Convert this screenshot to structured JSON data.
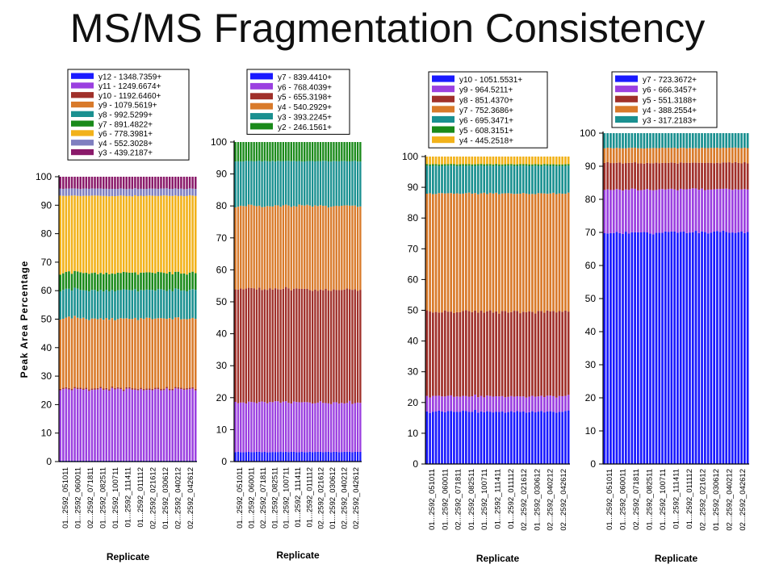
{
  "title": "MS/MS Fragmentation Consistency",
  "chart_data": [
    {
      "type": "bar",
      "stacked": true,
      "ylabel": "Peak Area Percentage",
      "xlabel": "Replicate",
      "ylim": [
        0,
        100
      ],
      "yticks": [
        0,
        10,
        20,
        30,
        40,
        50,
        60,
        70,
        80,
        90,
        100
      ],
      "legend": "top",
      "bar_count": 48,
      "category_labels": [
        "01...2592_051011",
        "01...2592_060011",
        "02...2592_071811",
        "01...2592_082511",
        "01...2592_100711",
        "01...2592_111411",
        "01...2592_011112",
        "02...2592_021612",
        "01...2592_030612",
        "02...2592_040212",
        "02...2592_042612"
      ],
      "series": [
        {
          "name": "y12 - 1348.7359+",
          "color": "#1a1aff",
          "value": 0.3
        },
        {
          "name": "y11 - 1249.6674+",
          "color": "#9b40e0",
          "value": 25
        },
        {
          "name": "y10 - 1192.6460+",
          "color": "#a0302a",
          "value": 0.5
        },
        {
          "name": "y9 - 1079.5619+",
          "color": "#d97a2a",
          "value": 24.5
        },
        {
          "name": "y8 - 992.5299+",
          "color": "#1a9090",
          "value": 10
        },
        {
          "name": "y7 - 891.4822+",
          "color": "#1a8a1a",
          "value": 6
        },
        {
          "name": "y6 - 778.3981+",
          "color": "#f2b21a",
          "value": 27
        },
        {
          "name": "y4 - 552.3028+",
          "color": "#7f7fc0",
          "value": 2.5
        },
        {
          "name": "y3 - 439.2187+",
          "color": "#8a1a6a",
          "value": 4.2
        }
      ]
    },
    {
      "type": "bar",
      "stacked": true,
      "ylabel": "",
      "xlabel": "Replicate",
      "ylim": [
        0,
        100
      ],
      "yticks": [
        0,
        10,
        20,
        30,
        40,
        50,
        60,
        70,
        80,
        90,
        100
      ],
      "legend": "top",
      "bar_count": 48,
      "category_labels": [
        "01...2592_051011",
        "01...2592_060011",
        "02...2592_071811",
        "01...2592_082511",
        "01...2592_100711",
        "01...2592_111411",
        "01...2592_011112",
        "02...2592_021612",
        "01...2592_030612",
        "02...2592_040212",
        "02...2592_042612"
      ],
      "series": [
        {
          "name": "y7 - 839.4410+",
          "color": "#1a1aff",
          "value": 3
        },
        {
          "name": "y6 - 768.4039+",
          "color": "#9b40e0",
          "value": 15.5
        },
        {
          "name": "y5 - 655.3198+",
          "color": "#a0302a",
          "value": 35.5
        },
        {
          "name": "y4 - 540.2929+",
          "color": "#d97a2a",
          "value": 26
        },
        {
          "name": "y3 - 393.2245+",
          "color": "#1a9090",
          "value": 14
        },
        {
          "name": "y2 - 246.1561+",
          "color": "#1a8a1a",
          "value": 6
        }
      ]
    },
    {
      "type": "bar",
      "stacked": true,
      "ylabel": "",
      "xlabel": "Replicate",
      "ylim": [
        0,
        100
      ],
      "yticks": [
        0,
        10,
        20,
        30,
        40,
        50,
        60,
        70,
        80,
        90,
        100
      ],
      "legend": "top",
      "bar_count": 48,
      "category_labels": [
        "01...2592_051011",
        "01...2592_060011",
        "02...2592_071811",
        "01...2592_082511",
        "01...2592_100711",
        "01...2592_111411",
        "01...2592_011112",
        "02...2592_021612",
        "01...2592_030612",
        "02...2592_040212",
        "02...2592_042612"
      ],
      "series": [
        {
          "name": "y10 - 1051.5531+",
          "color": "#1a1aff",
          "value": 17
        },
        {
          "name": "y9 - 964.5211+",
          "color": "#9b40e0",
          "value": 5
        },
        {
          "name": "y8 - 851.4370+",
          "color": "#a0302a",
          "value": 27.5
        },
        {
          "name": "y7 - 752.3686+",
          "color": "#d97a2a",
          "value": 38.5
        },
        {
          "name": "y6 - 695.3471+",
          "color": "#1a9090",
          "value": 9
        },
        {
          "name": "y5 - 608.3151+",
          "color": "#1a8a1a",
          "value": 0.5
        },
        {
          "name": "y4 - 445.2518+",
          "color": "#f2b21a",
          "value": 2.5
        }
      ]
    },
    {
      "type": "bar",
      "stacked": true,
      "ylabel": "",
      "xlabel": "Replicate",
      "ylim": [
        0,
        100
      ],
      "yticks": [
        0,
        10,
        20,
        30,
        40,
        50,
        60,
        70,
        80,
        90,
        100
      ],
      "legend": "top",
      "bar_count": 48,
      "category_labels": [
        "01...2592_051011",
        "01...2592_060011",
        "02...2592_071811",
        "01...2592_082511",
        "01...2592_100711",
        "01...2592_111411",
        "01...2592_011112",
        "02...2592_021612",
        "01...2592_030612",
        "02...2592_040212",
        "02...2592_042612"
      ],
      "series": [
        {
          "name": "y7 - 723.3672+",
          "color": "#1a1aff",
          "value": 70
        },
        {
          "name": "y6 - 666.3457+",
          "color": "#9b40e0",
          "value": 13
        },
        {
          "name": "y5 - 551.3188+",
          "color": "#a0302a",
          "value": 8
        },
        {
          "name": "y4 - 388.2554+",
          "color": "#d97a2a",
          "value": 4.5
        },
        {
          "name": "y3 - 317.2183+",
          "color": "#1a9090",
          "value": 4.5
        }
      ]
    }
  ]
}
